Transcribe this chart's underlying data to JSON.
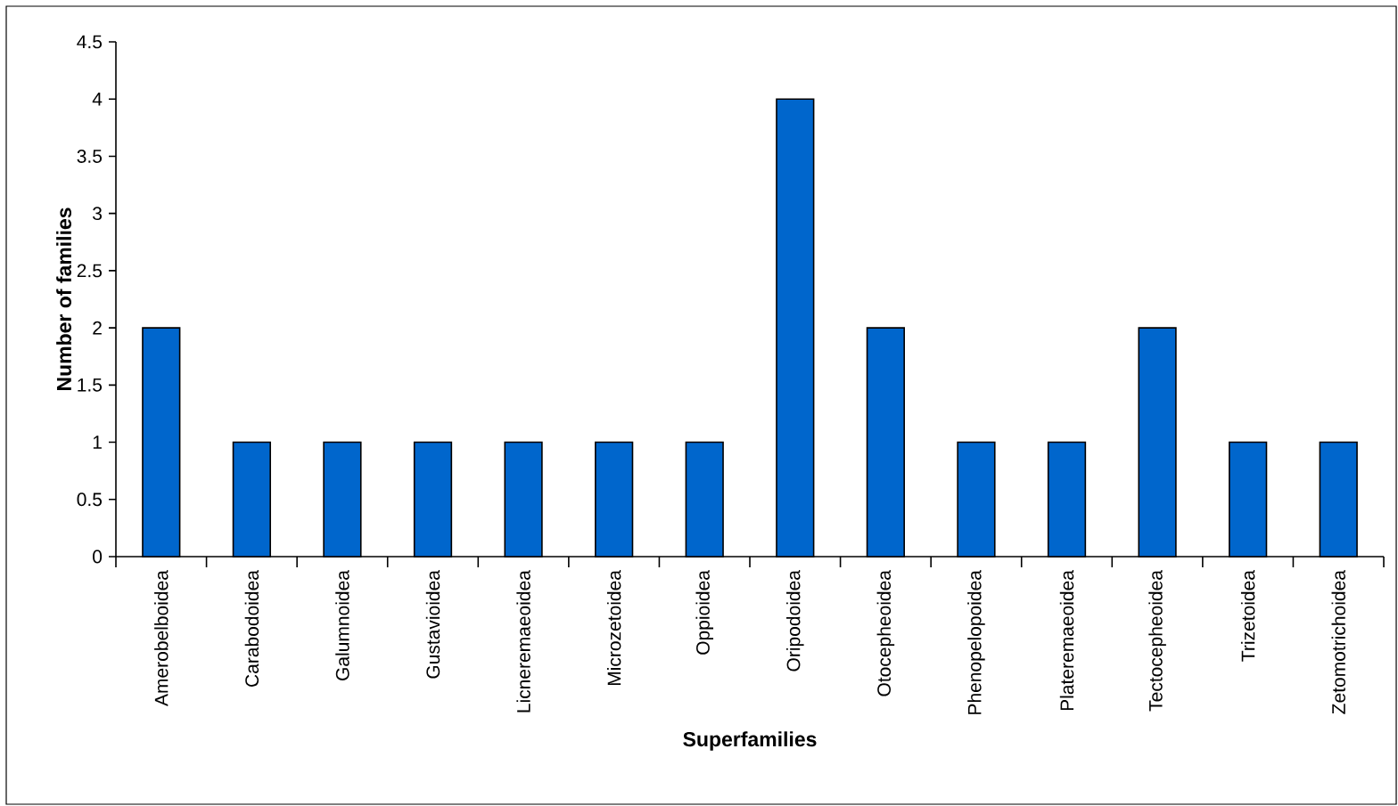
{
  "chart_data": {
    "type": "bar",
    "categories": [
      "Amerobelboidea",
      "Carabodoidea",
      "Galumnoidea",
      "Gustavioidea",
      "Licneremaeoidea",
      "Microzetoidea",
      "Oppioidea",
      "Oripodoidea",
      "Otocepheoidea",
      "Phenopelopoidea",
      "Plateremaeoidea",
      "Tectocepheoidea",
      "Trizetoidea",
      "Zetomotrichoidea"
    ],
    "values": [
      2,
      1,
      1,
      1,
      1,
      1,
      1,
      4,
      2,
      1,
      1,
      2,
      1,
      1
    ],
    "color": "#0066cc",
    "xlabel": "Superfamilies",
    "ylabel": "Number of families",
    "ylim": [
      0,
      4.5
    ],
    "yticks": [
      0,
      0.5,
      1,
      1.5,
      2,
      2.5,
      3,
      3.5,
      4,
      4.5
    ]
  }
}
